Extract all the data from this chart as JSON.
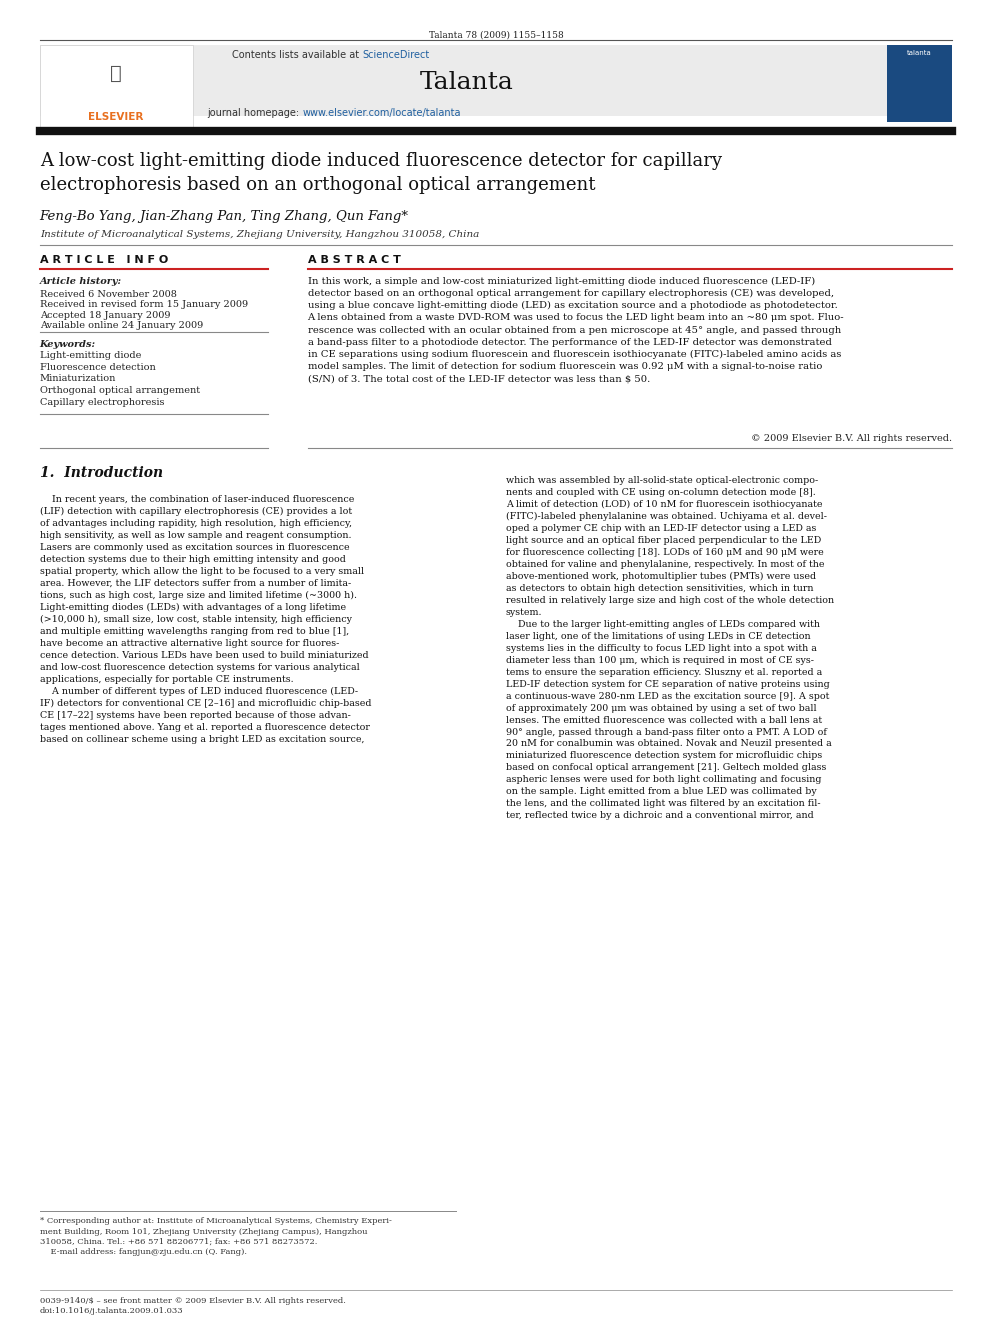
{
  "page_width": 9.92,
  "page_height": 13.23,
  "bg_color": "#ffffff",
  "journal_cite": "Talanta 78 (2009) 1155–1158",
  "header_bg": "#ebebeb",
  "contents_text": "Contents lists available at ",
  "sciencedirect_text": "ScienceDirect",
  "sciencedirect_color": "#2060a0",
  "journal_name": "Talanta",
  "journal_homepage_text": "journal homepage: ",
  "journal_url": "www.elsevier.com/locate/talanta",
  "journal_url_color": "#2060a0",
  "article_title": "A low-cost light-emitting diode induced fluorescence detector for capillary\nelectrophoresis based on an orthogonal optical arrangement",
  "authors": "Feng-Bo Yang, Jian-Zhang Pan, Ting Zhang, Qun Fang*",
  "affiliation": "Institute of Microanalytical Systems, Zhejiang University, Hangzhou 310058, China",
  "article_info_header": "A R T I C L E   I N F O",
  "abstract_header": "A B S T R A C T",
  "article_history_label": "Article history:",
  "received_1": "Received 6 November 2008",
  "received_2": "Received in revised form 15 January 2009",
  "accepted": "Accepted 18 January 2009",
  "available": "Available online 24 January 2009",
  "keywords_label": "Keywords:",
  "keywords": [
    "Light-emitting diode",
    "Fluorescence detection",
    "Miniaturization",
    "Orthogonal optical arrangement",
    "Capillary electrophoresis"
  ],
  "abstract_text": "In this work, a simple and low-cost miniaturized light-emitting diode induced fluorescence (LED-IF)\ndetector based on an orthogonal optical arrangement for capillary electrophoresis (CE) was developed,\nusing a blue concave light-emitting diode (LED) as excitation source and a photodiode as photodetector.\nA lens obtained from a waste DVD-ROM was used to focus the LED light beam into an ~80 μm spot. Fluo-\nrescence was collected with an ocular obtained from a pen microscope at 45° angle, and passed through\na band-pass filter to a photodiode detector. The performance of the LED-IF detector was demonstrated\nin CE separations using sodium fluorescein and fluorescein isothiocyanate (FITC)-labeled amino acids as\nmodel samples. The limit of detection for sodium fluorescein was 0.92 μM with a signal-to-noise ratio\n(S/N) of 3. The total cost of the LED-IF detector was less than $ 50.",
  "copyright": "© 2009 Elsevier B.V. All rights reserved.",
  "intro_header": "1.  Introduction",
  "intro_col1": "    In recent years, the combination of laser-induced fluorescence\n(LIF) detection with capillary electrophoresis (CE) provides a lot\nof advantages including rapidity, high resolution, high efficiency,\nhigh sensitivity, as well as low sample and reagent consumption.\nLasers are commonly used as excitation sources in fluorescence\ndetection systems due to their high emitting intensity and good\nspatial property, which allow the light to be focused to a very small\narea. However, the LIF detectors suffer from a number of limita-\ntions, such as high cost, large size and limited lifetime (~3000 h).\nLight-emitting diodes (LEDs) with advantages of a long lifetime\n(>10,000 h), small size, low cost, stable intensity, high efficiency\nand multiple emitting wavelengths ranging from red to blue [1],\nhave become an attractive alternative light source for fluores-\ncence detection. Various LEDs have been used to build miniaturized\nand low-cost fluorescence detection systems for various analytical\napplications, especially for portable CE instruments.\n    A number of different types of LED induced fluorescence (LED-\nIF) detectors for conventional CE [2–16] and microfluidic chip-based\nCE [17–22] systems have been reported because of those advan-\ntages mentioned above. Yang et al. reported a fluorescence detector\nbased on collinear scheme using a bright LED as excitation source,",
  "intro_col2": "which was assembled by all-solid-state optical-electronic compo-\nnents and coupled with CE using on-column detection mode [8].\nA limit of detection (LOD) of 10 nM for fluorescein isothiocyanate\n(FITC)-labeled phenylalanine was obtained. Uchiyama et al. devel-\noped a polymer CE chip with an LED-IF detector using a LED as\nlight source and an optical fiber placed perpendicular to the LED\nfor fluorescence collecting [18]. LODs of 160 μM and 90 μM were\nobtained for valine and phenylalanine, respectively. In most of the\nabove-mentioned work, photomultiplier tubes (PMTs) were used\nas detectors to obtain high detection sensitivities, which in turn\nresulted in relatively large size and high cost of the whole detection\nsystem.\n    Due to the larger light-emitting angles of LEDs compared with\nlaser light, one of the limitations of using LEDs in CE detection\nsystems lies in the difficulty to focus LED light into a spot with a\ndiameter less than 100 μm, which is required in most of CE sys-\ntems to ensure the separation efficiency. Sluszny et al. reported a\nLED-IF detection system for CE separation of native proteins using\na continuous-wave 280-nm LED as the excitation source [9]. A spot\nof approximately 200 μm was obtained by using a set of two ball\nlenses. The emitted fluorescence was collected with a ball lens at\n90° angle, passed through a band-pass filter onto a PMT. A LOD of\n20 nM for conalbumin was obtained. Novak and Neuzil presented a\nminiaturized fluorescence detection system for microfluidic chips\nbased on confocal optical arrangement [21]. Geltech molded glass\naspheric lenses were used for both light collimating and focusing\non the sample. Light emitted from a blue LED was collimated by\nthe lens, and the collimated light was filtered by an excitation fil-\nter, reflected twice by a dichroic and a conventional mirror, and",
  "footnote_star": "* Corresponding author at: Institute of Microanalytical Systems, Chemistry Experi-\nment Building, Room 101, Zhejiang University (Zhejiang Campus), Hangzhou\n310058, China. Tel.: +86 571 88206771; fax: +86 571 88273572.\n    E-mail address: fangjun@zju.edu.cn (Q. Fang).",
  "footer_left": "0039-9140/$ – see front matter © 2009 Elsevier B.V. All rights reserved.\ndoi:10.1016/j.talanta.2009.01.033"
}
